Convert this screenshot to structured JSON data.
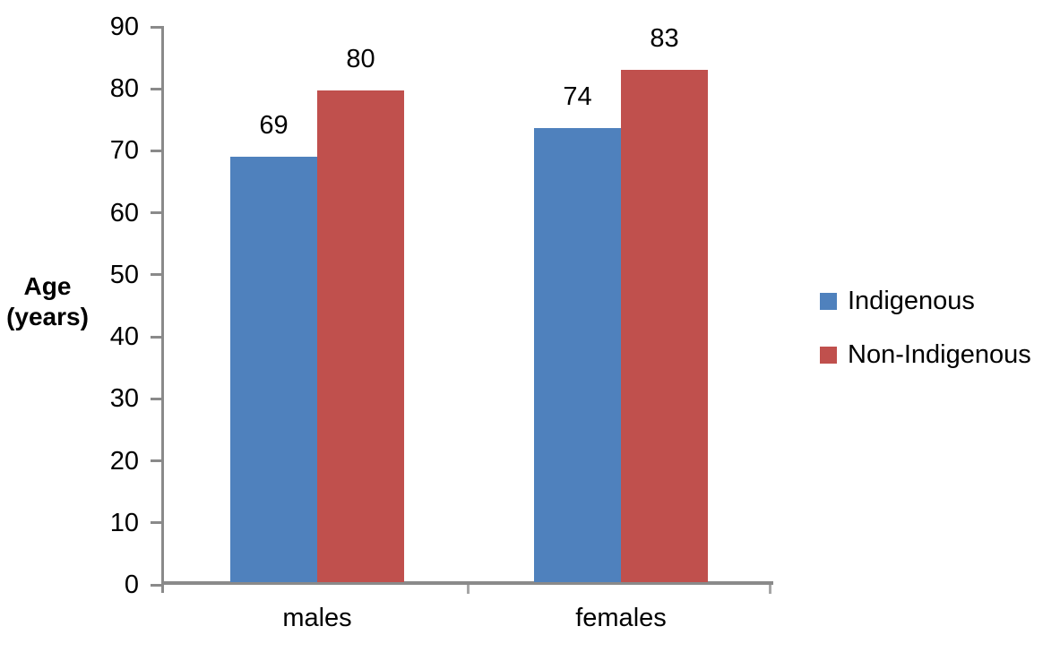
{
  "chart_data": {
    "type": "bar",
    "title": "",
    "xlabel": "",
    "ylabel": "Age (years)",
    "ylabel_lines": [
      "Age",
      "(years)"
    ],
    "categories": [
      "males",
      "females"
    ],
    "series": [
      {
        "name": "Indigenous",
        "color": "#4F81BD",
        "values": [
          69,
          74
        ],
        "plotted": [
          69.1,
          73.7
        ]
      },
      {
        "name": "Non-Indigenous",
        "color": "#C0504D",
        "values": [
          80,
          83
        ],
        "plotted": [
          79.7,
          83.1
        ]
      }
    ],
    "data_labels": true,
    "ylim": [
      0,
      90
    ],
    "ytick_step": 10,
    "ytick_labels": [
      "0",
      "10",
      "20",
      "30",
      "40",
      "50",
      "60",
      "70",
      "80",
      "90"
    ],
    "grid": false,
    "legend_position": "right",
    "colors": {
      "axis_line": "#8A8A8A",
      "tick_mark": "#A6A6A6",
      "text": "#000000",
      "background": "#FFFFFF"
    }
  }
}
